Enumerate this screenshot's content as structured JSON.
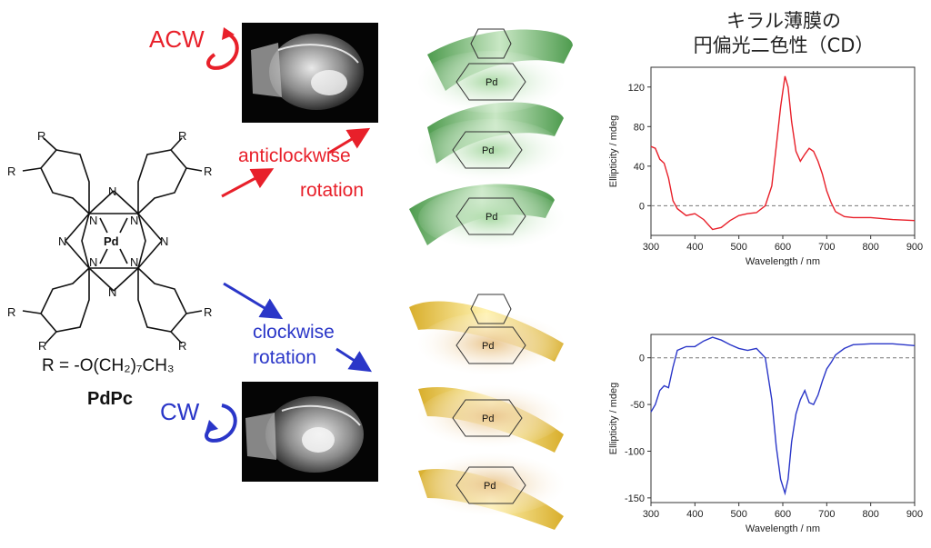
{
  "labels": {
    "acw": "ACW",
    "cw": "CW",
    "anticlockwise": "anticlockwise",
    "rotation_top": "rotation",
    "clockwise": "clockwise",
    "rotation_bottom": "rotation",
    "r_group": "R = -O(CH₂)₇CH₃",
    "compound": "PdPc",
    "metal": "Pd",
    "r": "R",
    "n": "N"
  },
  "cd_title": {
    "line1": "キラル薄膜の",
    "line2": "円偏光二色性（CD）"
  },
  "colors": {
    "acw": "#e8202a",
    "cw": "#2a36c8",
    "green_helix": "#49a845",
    "yellow_helix": "#e8c21a"
  },
  "chart_data": [
    {
      "type": "line",
      "title": "",
      "xlabel": "Wavelength / nm",
      "ylabel": "Ellipticity / mdeg",
      "xlim": [
        300,
        900
      ],
      "ylim": [
        -30,
        140
      ],
      "xticks": [
        300,
        400,
        500,
        600,
        700,
        800,
        900
      ],
      "yticks": [
        0,
        40,
        80,
        120
      ],
      "zero_line": "dashed",
      "series": [
        {
          "color": "#e8202a",
          "x": [
            300,
            310,
            320,
            330,
            340,
            350,
            360,
            380,
            400,
            420,
            440,
            460,
            480,
            500,
            520,
            540,
            560,
            575,
            585,
            595,
            605,
            612,
            620,
            630,
            640,
            650,
            660,
            670,
            680,
            690,
            700,
            710,
            720,
            740,
            760,
            800,
            850,
            900
          ],
          "y": [
            60,
            58,
            47,
            43,
            28,
            5,
            -3,
            -10,
            -8,
            -14,
            -24,
            -22,
            -15,
            -10,
            -8,
            -7,
            0,
            20,
            60,
            100,
            131,
            120,
            85,
            55,
            45,
            52,
            58,
            55,
            45,
            32,
            15,
            3,
            -6,
            -11,
            -12,
            -12,
            -14,
            -15
          ]
        }
      ]
    },
    {
      "type": "line",
      "title": "",
      "xlabel": "Wavelength / nm",
      "ylabel": "Ellipticity / mdeg",
      "xlim": [
        300,
        900
      ],
      "ylim": [
        -155,
        25
      ],
      "xticks": [
        300,
        400,
        500,
        600,
        700,
        800,
        900
      ],
      "yticks": [
        0,
        -50,
        -100,
        -150
      ],
      "zero_line": "dashed",
      "series": [
        {
          "color": "#2a36c8",
          "x": [
            300,
            310,
            320,
            330,
            340,
            350,
            360,
            380,
            400,
            420,
            440,
            460,
            480,
            500,
            520,
            540,
            560,
            575,
            585,
            595,
            605,
            612,
            620,
            630,
            640,
            650,
            660,
            670,
            680,
            690,
            700,
            710,
            720,
            740,
            760,
            800,
            850,
            900
          ],
          "y": [
            -58,
            -50,
            -35,
            -30,
            -32,
            -10,
            8,
            12,
            12,
            18,
            22,
            19,
            14,
            10,
            8,
            10,
            0,
            -45,
            -95,
            -130,
            -145,
            -130,
            -90,
            -60,
            -45,
            -35,
            -48,
            -50,
            -40,
            -25,
            -12,
            -5,
            3,
            10,
            14,
            15,
            15,
            13
          ]
        }
      ]
    }
  ]
}
